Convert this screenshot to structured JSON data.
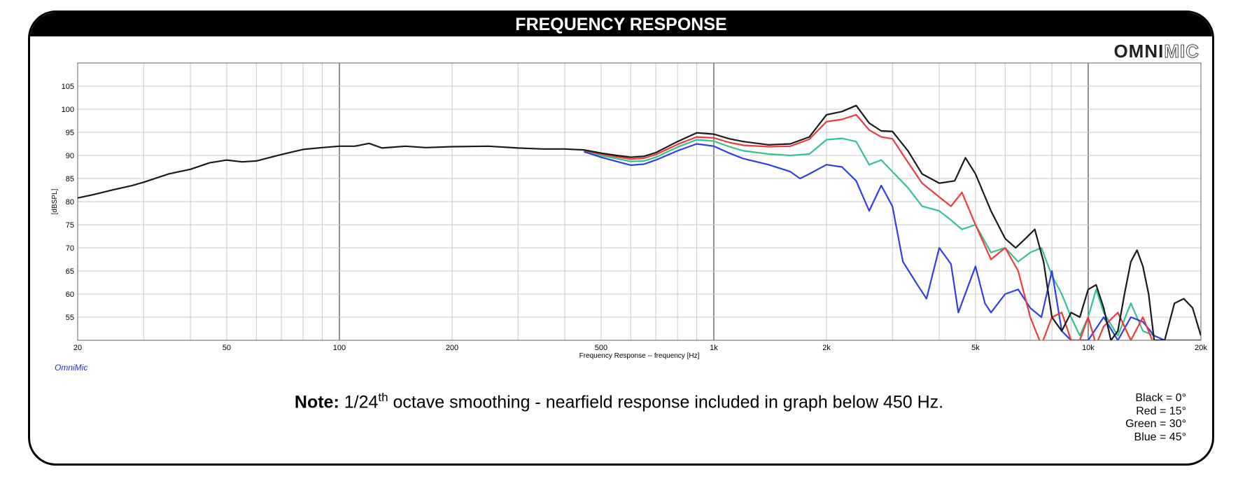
{
  "header": {
    "title": "FREQUENCY RESPONSE"
  },
  "logo": {
    "bold": "OMNI",
    "outline": "MIC"
  },
  "footer_brand": "OmniMic",
  "note": {
    "bold": "Note:",
    "text_before_sup": " 1/24",
    "sup": "th",
    "text_after_sup": " octave smoothing - nearfield response included in graph below 450 Hz."
  },
  "legend": [
    "Black = 0°",
    "Red = 15°",
    "Green = 30°",
    "Blue = 45°"
  ],
  "colors": {
    "black": "#1a1a1a",
    "red": "#f03a3a",
    "green": "#33c48e",
    "blue": "#2e3fe8",
    "grid": "#c8c8c8",
    "grid_major": "#555555"
  },
  "chart_data": {
    "type": "line",
    "title": "FREQUENCY RESPONSE",
    "xlabel": "Frequency Response -- frequency [Hz]",
    "ylabel": "[dBSPL]",
    "xscale": "log",
    "xlim": [
      20,
      20000
    ],
    "ylim": [
      50,
      110
    ],
    "x_tick_labels": [
      {
        "v": 20,
        "t": "20"
      },
      {
        "v": 50,
        "t": "50"
      },
      {
        "v": 100,
        "t": "100"
      },
      {
        "v": 200,
        "t": "200"
      },
      {
        "v": 500,
        "t": "500"
      },
      {
        "v": 1000,
        "t": "1k"
      },
      {
        "v": 2000,
        "t": "2k"
      },
      {
        "v": 5000,
        "t": "5k"
      },
      {
        "v": 10000,
        "t": "10k"
      },
      {
        "v": 20000,
        "t": "20k"
      }
    ],
    "y_ticks": [
      55,
      60,
      65,
      70,
      75,
      80,
      85,
      90,
      95,
      100,
      105
    ],
    "grid": true,
    "series": [
      {
        "name": "Black = 0°",
        "color": "#1a1a1a",
        "points": [
          [
            20,
            80.8
          ],
          [
            22,
            81.5
          ],
          [
            25,
            82.6
          ],
          [
            28,
            83.5
          ],
          [
            30,
            84.2
          ],
          [
            35,
            86
          ],
          [
            40,
            87
          ],
          [
            45,
            88.4
          ],
          [
            50,
            89
          ],
          [
            55,
            88.6
          ],
          [
            60,
            88.8
          ],
          [
            70,
            90.2
          ],
          [
            80,
            91.3
          ],
          [
            90,
            91.7
          ],
          [
            100,
            92
          ],
          [
            110,
            92
          ],
          [
            120,
            92.6
          ],
          [
            130,
            91.6
          ],
          [
            150,
            92
          ],
          [
            170,
            91.7
          ],
          [
            200,
            91.9
          ],
          [
            250,
            92
          ],
          [
            300,
            91.6
          ],
          [
            350,
            91.4
          ],
          [
            400,
            91.4
          ],
          [
            450,
            91.2
          ],
          [
            500,
            90.5
          ],
          [
            550,
            90
          ],
          [
            600,
            89.6
          ],
          [
            650,
            89.8
          ],
          [
            700,
            90.6
          ],
          [
            800,
            93
          ],
          [
            900,
            94.9
          ],
          [
            1000,
            94.6
          ],
          [
            1100,
            93.6
          ],
          [
            1200,
            93
          ],
          [
            1400,
            92.3
          ],
          [
            1600,
            92.5
          ],
          [
            1800,
            94
          ],
          [
            2000,
            98.8
          ],
          [
            2200,
            99.5
          ],
          [
            2400,
            100.8
          ],
          [
            2600,
            97
          ],
          [
            2800,
            95.3
          ],
          [
            3000,
            95.2
          ],
          [
            3300,
            91
          ],
          [
            3600,
            86
          ],
          [
            4000,
            84
          ],
          [
            4400,
            84.5
          ],
          [
            4700,
            89.5
          ],
          [
            5000,
            86
          ],
          [
            5500,
            78
          ],
          [
            6000,
            72
          ],
          [
            6400,
            70
          ],
          [
            6800,
            72
          ],
          [
            7200,
            74
          ],
          [
            7600,
            67
          ],
          [
            8000,
            55
          ],
          [
            8500,
            52
          ],
          [
            9000,
            56
          ],
          [
            9500,
            55
          ],
          [
            10000,
            61
          ],
          [
            10500,
            62
          ],
          [
            11000,
            57
          ],
          [
            11500,
            50
          ],
          [
            12000,
            52
          ],
          [
            12500,
            60
          ],
          [
            13000,
            67
          ],
          [
            13500,
            69.5
          ],
          [
            14000,
            66
          ],
          [
            14500,
            60
          ],
          [
            15000,
            50
          ],
          [
            16000,
            50
          ],
          [
            17000,
            58
          ],
          [
            18000,
            59
          ],
          [
            19000,
            57
          ],
          [
            20000,
            51
          ]
        ]
      },
      {
        "name": "Red = 15°",
        "color": "#f03a3a",
        "points": [
          [
            450,
            91.1
          ],
          [
            500,
            90.3
          ],
          [
            550,
            89.7
          ],
          [
            600,
            89.2
          ],
          [
            650,
            89.4
          ],
          [
            700,
            90.2
          ],
          [
            800,
            92.4
          ],
          [
            900,
            94
          ],
          [
            1000,
            93.8
          ],
          [
            1100,
            92.8
          ],
          [
            1200,
            92.2
          ],
          [
            1400,
            91.9
          ],
          [
            1600,
            92
          ],
          [
            1800,
            93.5
          ],
          [
            2000,
            97.3
          ],
          [
            2200,
            97.8
          ],
          [
            2400,
            98.8
          ],
          [
            2600,
            95.5
          ],
          [
            2800,
            94
          ],
          [
            3000,
            93.6
          ],
          [
            3300,
            88.5
          ],
          [
            3600,
            84
          ],
          [
            4000,
            81
          ],
          [
            4300,
            79
          ],
          [
            4600,
            82
          ],
          [
            5000,
            75
          ],
          [
            5500,
            67.5
          ],
          [
            6000,
            70
          ],
          [
            6500,
            65
          ],
          [
            7000,
            55
          ],
          [
            7500,
            49
          ],
          [
            8000,
            55
          ],
          [
            8500,
            56
          ],
          [
            9000,
            50
          ],
          [
            9500,
            50
          ],
          [
            10000,
            55
          ],
          [
            10500,
            49
          ],
          [
            11000,
            53
          ],
          [
            12000,
            56
          ],
          [
            13000,
            50
          ],
          [
            14000,
            55
          ],
          [
            15000,
            49
          ],
          [
            16000,
            50
          ],
          [
            20000,
            50
          ]
        ]
      },
      {
        "name": "Green = 30°",
        "color": "#33c48e",
        "points": [
          [
            450,
            91
          ],
          [
            500,
            90
          ],
          [
            550,
            89.3
          ],
          [
            600,
            88.7
          ],
          [
            650,
            88.8
          ],
          [
            700,
            89.6
          ],
          [
            800,
            91.8
          ],
          [
            900,
            93.4
          ],
          [
            1000,
            93.1
          ],
          [
            1100,
            91.9
          ],
          [
            1200,
            91
          ],
          [
            1400,
            90.3
          ],
          [
            1600,
            90
          ],
          [
            1800,
            90.3
          ],
          [
            2000,
            93.4
          ],
          [
            2200,
            93.7
          ],
          [
            2400,
            93
          ],
          [
            2600,
            88
          ],
          [
            2800,
            89
          ],
          [
            3000,
            86.5
          ],
          [
            3300,
            83
          ],
          [
            3600,
            79
          ],
          [
            4000,
            78
          ],
          [
            4300,
            76
          ],
          [
            4600,
            74
          ],
          [
            5000,
            75
          ],
          [
            5500,
            69
          ],
          [
            6000,
            70
          ],
          [
            6500,
            67
          ],
          [
            7000,
            69
          ],
          [
            7500,
            70
          ],
          [
            8000,
            64
          ],
          [
            8500,
            60
          ],
          [
            9000,
            55
          ],
          [
            9500,
            51
          ],
          [
            10000,
            55
          ],
          [
            10500,
            61
          ],
          [
            11000,
            56
          ],
          [
            12000,
            51
          ],
          [
            13000,
            58
          ],
          [
            14000,
            52
          ],
          [
            15000,
            51
          ],
          [
            16000,
            50
          ],
          [
            20000,
            50
          ]
        ]
      },
      {
        "name": "Blue = 45°",
        "color": "#2e3fe8",
        "points": [
          [
            450,
            90.8
          ],
          [
            500,
            89.6
          ],
          [
            550,
            88.7
          ],
          [
            600,
            87.9
          ],
          [
            650,
            88.1
          ],
          [
            700,
            89
          ],
          [
            800,
            91
          ],
          [
            900,
            92.5
          ],
          [
            1000,
            92
          ],
          [
            1100,
            90.5
          ],
          [
            1200,
            89.3
          ],
          [
            1400,
            88
          ],
          [
            1600,
            86.5
          ],
          [
            1700,
            85
          ],
          [
            1800,
            86
          ],
          [
            2000,
            88
          ],
          [
            2200,
            87.5
          ],
          [
            2400,
            84.5
          ],
          [
            2600,
            78
          ],
          [
            2800,
            83.5
          ],
          [
            3000,
            79
          ],
          [
            3200,
            67
          ],
          [
            3500,
            62
          ],
          [
            3700,
            59
          ],
          [
            4000,
            70
          ],
          [
            4300,
            66.5
          ],
          [
            4500,
            56
          ],
          [
            5000,
            66
          ],
          [
            5300,
            58
          ],
          [
            5500,
            56
          ],
          [
            6000,
            60
          ],
          [
            6500,
            61
          ],
          [
            7000,
            57
          ],
          [
            7500,
            55
          ],
          [
            8000,
            65
          ],
          [
            8500,
            52
          ],
          [
            9000,
            50
          ],
          [
            10000,
            50
          ],
          [
            11000,
            55
          ],
          [
            12000,
            50
          ],
          [
            13000,
            55
          ],
          [
            14000,
            54
          ],
          [
            15000,
            51
          ],
          [
            16000,
            50
          ],
          [
            20000,
            50
          ]
        ]
      }
    ]
  }
}
